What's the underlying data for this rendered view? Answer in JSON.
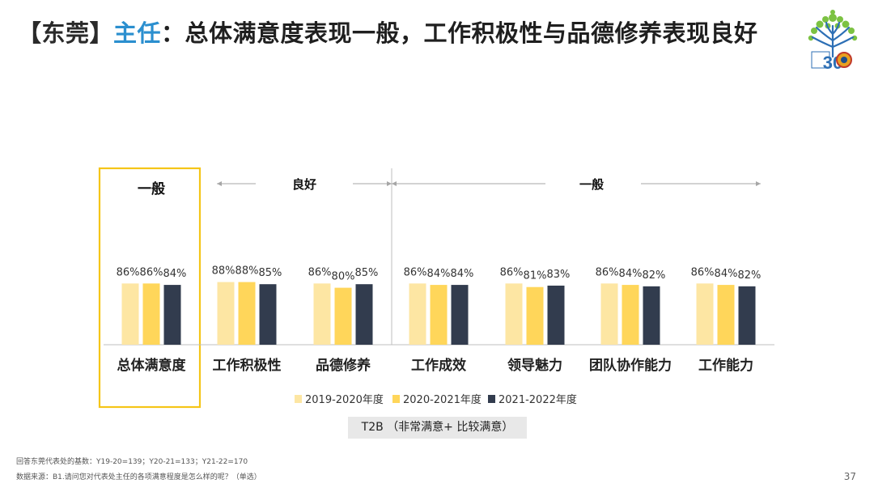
{
  "title": {
    "city": "【东莞】",
    "role": "主任",
    "rest": "：总体满意度表现一般，工作积极性与品德修养表现良好"
  },
  "logo": {
    "icon": "tree-logo-icon",
    "big_numeral": "30"
  },
  "colors": {
    "series1": "#fde6a3",
    "series2": "#ffd65a",
    "series3": "#323c4e",
    "highlight_box": "#f5c518",
    "axis": "#bfbfbf",
    "arrow": "#a6a6a6",
    "title_accent": "#2b8fcf"
  },
  "chart_data": {
    "type": "bar",
    "categories": [
      "总体满意度",
      "工作积极性",
      "品德修养",
      "工作成效",
      "领导魅力",
      "团队协作能力",
      "工作能力"
    ],
    "series": [
      {
        "name": "2019-2020年度",
        "values": [
          86,
          88,
          86,
          86,
          86,
          86,
          86
        ]
      },
      {
        "name": "2020-2021年度",
        "values": [
          86,
          88,
          80,
          84,
          81,
          84,
          84
        ]
      },
      {
        "name": "2021-2022年度",
        "values": [
          84,
          85,
          85,
          84,
          83,
          82,
          82
        ]
      }
    ],
    "value_suffix": "%",
    "group_labels": {
      "total": "一般",
      "good": "良好",
      "average": "一般"
    },
    "legend_position": "bottom-center",
    "highlighted_category": "总体满意度"
  },
  "t2b_label": "T2B （非常满意+ 比较满意）",
  "footnotes": {
    "base": "回答东莞代表处的基数：Y19-20=139；Y20-21=133；Y21-22=170",
    "source": "数据来源：B1.请问您对代表处主任的各项满意程度是怎么样的呢？（单选）"
  },
  "page_number": "37"
}
